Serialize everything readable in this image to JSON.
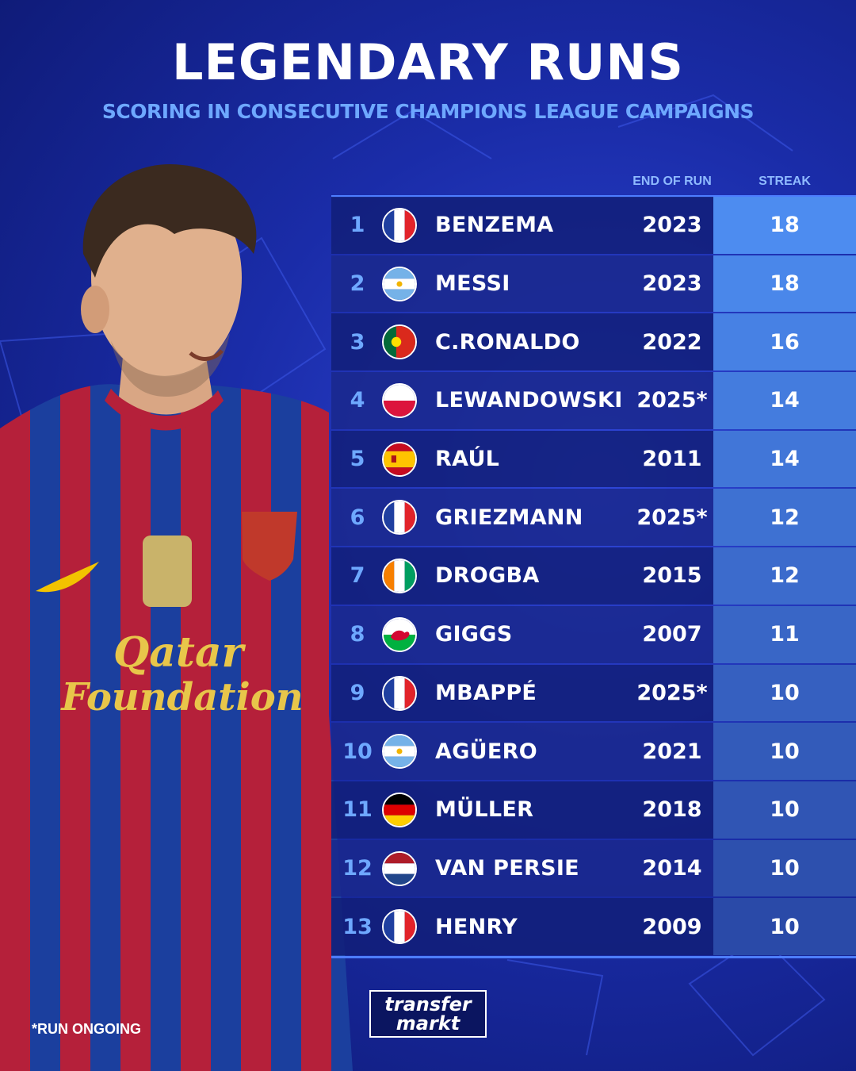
{
  "title": "LEGENDARY RUNS",
  "subtitle": "SCORING IN CONSECUTIVE CHAMPIONS LEAGUE CAMPAIGNS",
  "columns": {
    "end_of_run": "END OF RUN",
    "streak": "STREAK"
  },
  "rows": [
    {
      "rank": "1",
      "name": "BENZEMA",
      "year": "2023",
      "streak": 18,
      "flag": "france-flag-icon"
    },
    {
      "rank": "2",
      "name": "MESSI",
      "year": "2023",
      "streak": 18,
      "flag": "argentina-flag-icon"
    },
    {
      "rank": "3",
      "name": "C.RONALDO",
      "year": "2022",
      "streak": 16,
      "flag": "portugal-flag-icon"
    },
    {
      "rank": "4",
      "name": "LEWANDOWSKI",
      "year": "2025*",
      "streak": 14,
      "flag": "poland-flag-icon"
    },
    {
      "rank": "5",
      "name": "RAÚL",
      "year": "2011",
      "streak": 14,
      "flag": "spain-flag-icon"
    },
    {
      "rank": "6",
      "name": "GRIEZMANN",
      "year": "2025*",
      "streak": 12,
      "flag": "france-flag-icon"
    },
    {
      "rank": "7",
      "name": "DROGBA",
      "year": "2015",
      "streak": 12,
      "flag": "ivory-coast-flag-icon"
    },
    {
      "rank": "8",
      "name": "GIGGS",
      "year": "2007",
      "streak": 11,
      "flag": "wales-flag-icon"
    },
    {
      "rank": "9",
      "name": "MBAPPÉ",
      "year": "2025*",
      "streak": 10,
      "flag": "france-flag-icon"
    },
    {
      "rank": "10",
      "name": "AGÜERO",
      "year": "2021",
      "streak": 10,
      "flag": "argentina-flag-icon"
    },
    {
      "rank": "11",
      "name": "MÜLLER",
      "year": "2018",
      "streak": 10,
      "flag": "germany-flag-icon"
    },
    {
      "rank": "12",
      "name": "VAN PERSIE",
      "year": "2014",
      "streak": 10,
      "flag": "netherlands-flag-icon"
    },
    {
      "rank": "13",
      "name": "HENRY",
      "year": "2009",
      "streak": 10,
      "flag": "france-flag-icon"
    }
  ],
  "footnote": "*RUN ONGOING",
  "logo": {
    "line1": "transfer",
    "line2": "markt"
  },
  "player_shirt_text": {
    "sponsor_line1": "Qatar",
    "sponsor_line2": "Foundation"
  },
  "colors": {
    "streak_high": "#4d8cf0",
    "streak_low": "#2a4aa8",
    "rank": "#6ea8ff",
    "subtitle": "#6ea8ff"
  }
}
